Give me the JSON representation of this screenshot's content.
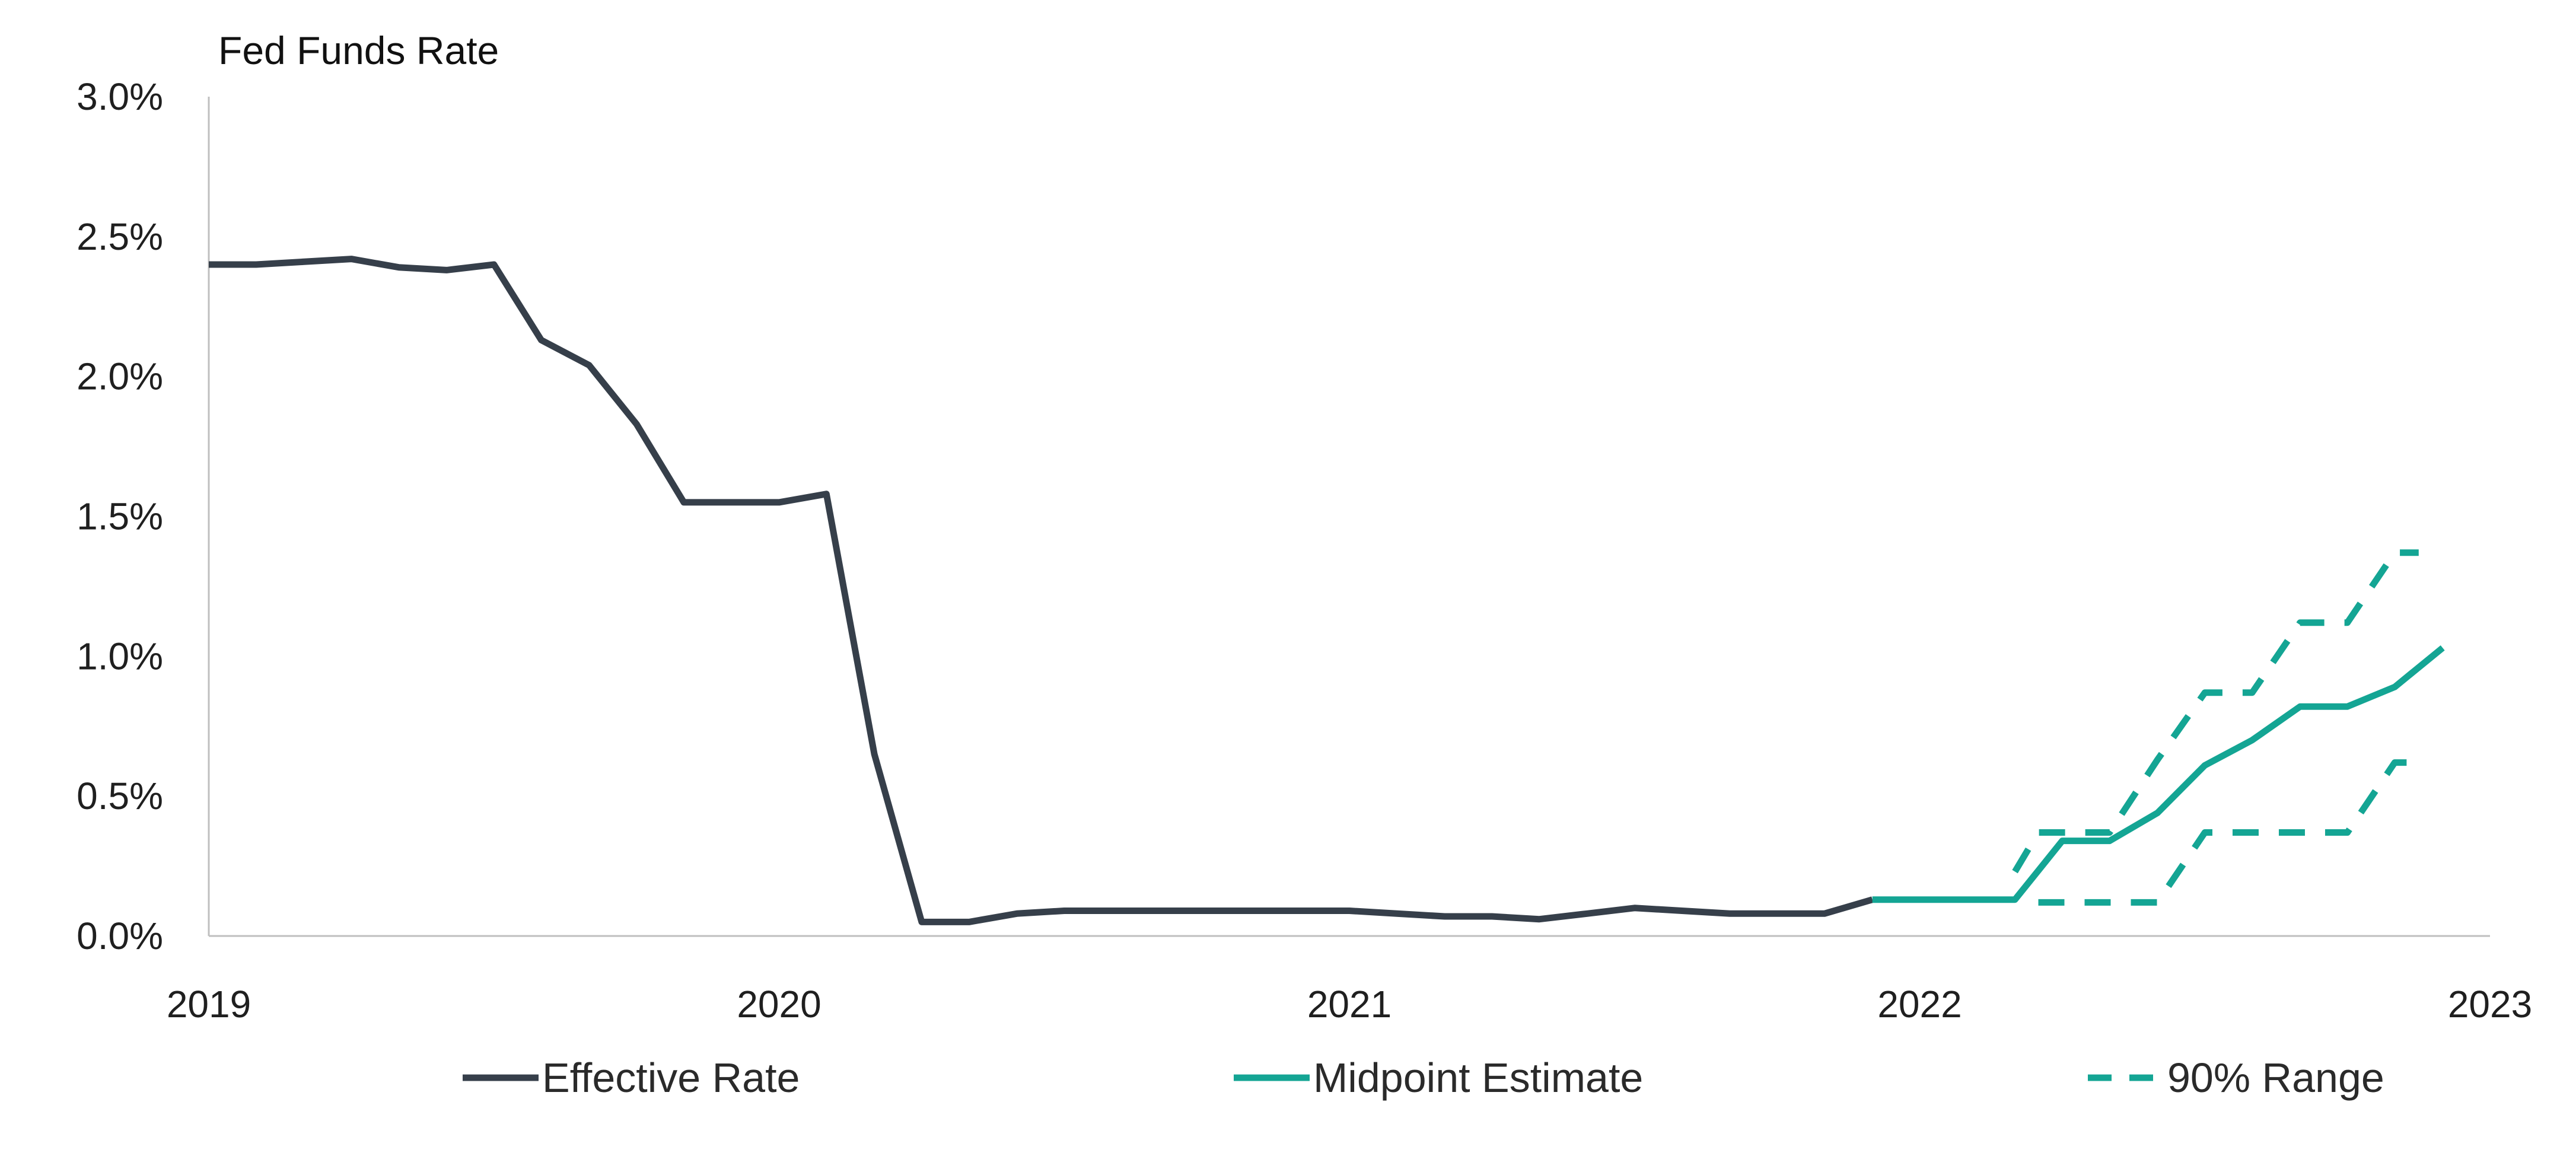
{
  "chart_data": {
    "type": "line",
    "title": "Fed Funds Rate",
    "xlabel": "",
    "ylabel": "",
    "x_ticks": [
      "2019",
      "2020",
      "2021",
      "2022",
      "2023"
    ],
    "y_ticks": [
      "0.0%",
      "0.5%",
      "1.0%",
      "1.5%",
      "2.0%",
      "2.5%",
      "3.0%"
    ],
    "xlim": [
      2019.0,
      2023.0
    ],
    "ylim": [
      0.0,
      3.0
    ],
    "grid": false,
    "legend_position": "bottom",
    "series": [
      {
        "name": "Effective Rate",
        "color": "#363f4a",
        "style": "solid",
        "x": [
          2019.0,
          2019.083,
          2019.167,
          2019.25,
          2019.333,
          2019.417,
          2019.5,
          2019.583,
          2019.667,
          2019.75,
          2019.833,
          2019.917,
          2020.0,
          2020.083,
          2020.167,
          2020.25,
          2020.333,
          2020.417,
          2020.5,
          2020.583,
          2020.667,
          2020.75,
          2020.833,
          2020.917,
          2021.0,
          2021.083,
          2021.167,
          2021.25,
          2021.333,
          2021.417,
          2021.5,
          2021.583,
          2021.667,
          2021.75,
          2021.833,
          2021.917
        ],
        "y": [
          2.4,
          2.4,
          2.41,
          2.42,
          2.39,
          2.38,
          2.4,
          2.13,
          2.04,
          1.83,
          1.55,
          1.55,
          1.55,
          1.58,
          0.65,
          0.05,
          0.05,
          0.08,
          0.09,
          0.09,
          0.09,
          0.09,
          0.09,
          0.09,
          0.09,
          0.08,
          0.07,
          0.07,
          0.06,
          0.08,
          0.1,
          0.09,
          0.08,
          0.08,
          0.08,
          0.13
        ]
      },
      {
        "name": "Midpoint Estimate",
        "color": "#14a594",
        "style": "solid",
        "x": [
          2021.917,
          2022.0,
          2022.083,
          2022.167,
          2022.25,
          2022.333,
          2022.417,
          2022.5,
          2022.583,
          2022.667,
          2022.75,
          2022.833,
          2022.917
        ],
        "y": [
          0.13,
          0.13,
          0.13,
          0.13,
          0.34,
          0.34,
          0.44,
          0.61,
          0.7,
          0.82,
          0.82,
          0.89,
          1.03
        ]
      },
      {
        "name": "90% Range",
        "color": "#14a594",
        "style": "dashed",
        "segments": [
          {
            "x": [
              2022.167,
              2022.208,
              2022.25,
              2022.333,
              2022.417,
              2022.5,
              2022.583,
              2022.667,
              2022.75,
              2022.833,
              2022.875
            ],
            "y": [
              0.23,
              0.37,
              0.37,
              0.37,
              0.63,
              0.87,
              0.87,
              1.12,
              1.12,
              1.37,
              1.37
            ]
          },
          {
            "x": [
              2022.208,
              2022.25,
              2022.333,
              2022.417,
              2022.5,
              2022.583,
              2022.667,
              2022.75,
              2022.833,
              2022.875
            ],
            "y": [
              0.12,
              0.12,
              0.12,
              0.12,
              0.37,
              0.37,
              0.37,
              0.37,
              0.62,
              0.62
            ]
          }
        ]
      }
    ]
  }
}
